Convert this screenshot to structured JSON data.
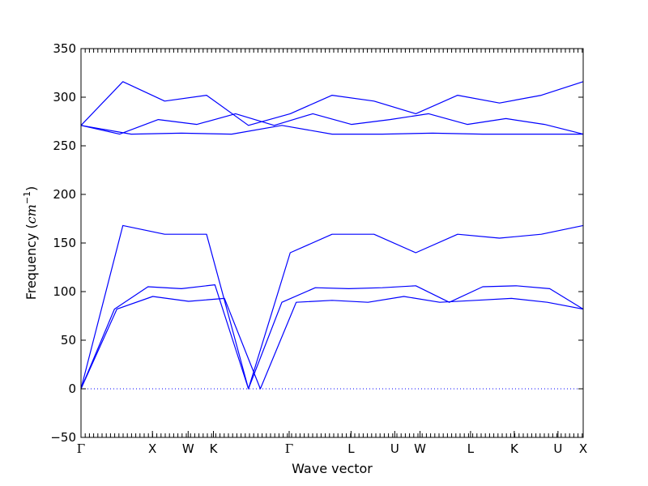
{
  "chart_data": {
    "type": "line",
    "xlabel": "Wave vector",
    "ylabel": {
      "prefix": "Frequency (",
      "unit": "cm",
      "sup": "−1",
      "suffix": ")"
    },
    "ylim": [
      -50,
      350
    ],
    "yticks": [
      -50,
      0,
      50,
      100,
      150,
      200,
      250,
      300,
      350
    ],
    "ytick_labels": [
      "−50",
      "0",
      "50",
      "100",
      "150",
      "200",
      "250",
      "300",
      "350"
    ],
    "high_symmetry_points": [
      {
        "label": "Γ",
        "k": 0.0
      },
      {
        "label": "X",
        "k": 1.0
      },
      {
        "label": "W",
        "k": 1.5
      },
      {
        "label": "K",
        "k": 1.854
      },
      {
        "label": "Γ",
        "k": 2.914
      },
      {
        "label": "L",
        "k": 3.78
      },
      {
        "label": "U",
        "k": 4.392
      },
      {
        "label": "W",
        "k": 4.746
      },
      {
        "label": "L",
        "k": 5.453
      },
      {
        "label": "K",
        "k": 6.065
      },
      {
        "label": "U",
        "k": 6.677
      },
      {
        "label": "X",
        "k": 7.03
      }
    ],
    "xlim": [
      0,
      7.03
    ],
    "grid": false,
    "zero_line": {
      "value": 0,
      "style": "dotted",
      "color": "#0000ff"
    },
    "line_color": "#0000ff",
    "series": [
      {
        "values": [
          0,
          82,
          95,
          90,
          93,
          0,
          89,
          91,
          89,
          95,
          89,
          91,
          93,
          89,
          82
        ]
      },
      {
        "values": [
          0,
          82,
          105,
          103,
          107,
          0,
          89,
          104,
          103,
          104,
          106,
          89,
          105,
          106,
          103,
          82
        ]
      },
      {
        "values": [
          0,
          168,
          159,
          159,
          0,
          140,
          159,
          159,
          140,
          159,
          155,
          159,
          168
        ]
      },
      {
        "values": [
          271,
          262,
          263,
          262,
          271,
          262,
          262,
          263,
          262,
          262,
          262
        ]
      },
      {
        "values": [
          271,
          262,
          277,
          272,
          283,
          271,
          283,
          272,
          277,
          283,
          272,
          278,
          272,
          262
        ]
      },
      {
        "values": [
          271,
          316,
          296,
          302,
          271,
          283,
          302,
          296,
          283,
          302,
          294,
          302,
          316
        ]
      }
    ]
  }
}
